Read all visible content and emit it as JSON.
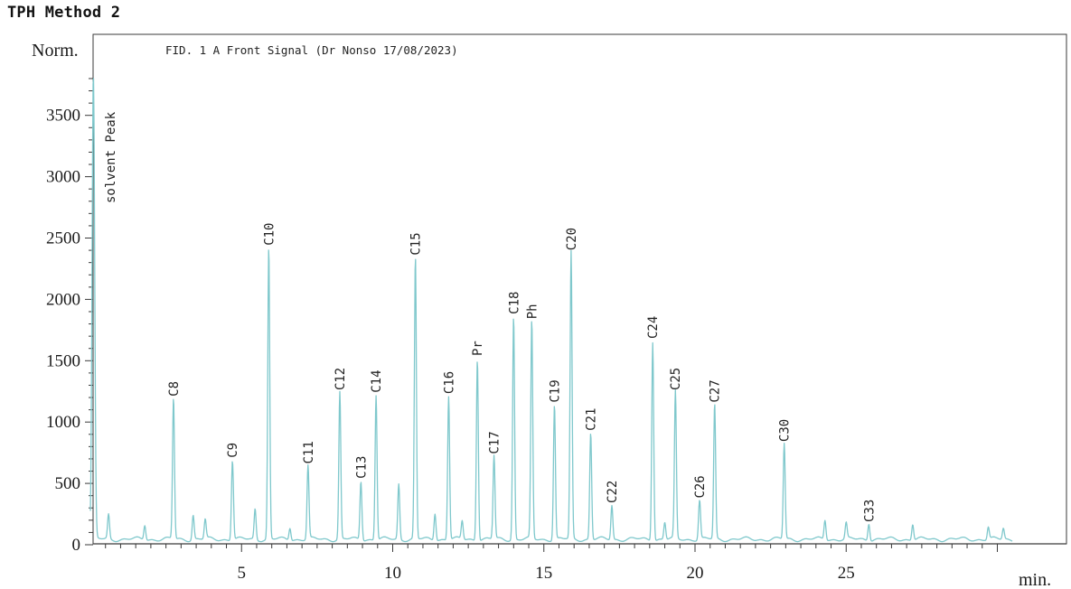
{
  "page_title": "TPH Method 2",
  "chart_data": {
    "type": "line",
    "signal_label": "FID. 1 A Front Signal (Dr Nonso 17/08/2023)",
    "ylabel": "Norm.",
    "xlabel": "min.",
    "xlim": [
      0,
      30.5
    ],
    "ylim": [
      0,
      3800
    ],
    "y_ticks": [
      0,
      500,
      1000,
      1500,
      2000,
      2500,
      3000,
      3500
    ],
    "x_ticks": [
      5,
      10,
      15,
      20,
      25
    ],
    "grid": false,
    "trace_color": "#7fc8cc",
    "peaks": [
      {
        "label": "solvent Peak",
        "x": 0.1,
        "y": 3800
      },
      {
        "label": "C8",
        "x": 2.75,
        "y": 1150
      },
      {
        "label": "C9",
        "x": 4.7,
        "y": 650
      },
      {
        "label": "C10",
        "x": 5.9,
        "y": 2380
      },
      {
        "label": "C11",
        "x": 7.2,
        "y": 600
      },
      {
        "label": "C12",
        "x": 8.25,
        "y": 1200
      },
      {
        "label": "C13",
        "x": 8.95,
        "y": 480
      },
      {
        "label": "C14",
        "x": 9.45,
        "y": 1180
      },
      {
        "label": "C15",
        "x": 10.75,
        "y": 2300
      },
      {
        "label": "C16",
        "x": 11.85,
        "y": 1170
      },
      {
        "label": "Pr",
        "x": 12.8,
        "y": 1480
      },
      {
        "label": "C17",
        "x": 13.35,
        "y": 680
      },
      {
        "label": "C18",
        "x": 14.0,
        "y": 1820
      },
      {
        "label": "Ph",
        "x": 14.6,
        "y": 1780
      },
      {
        "label": "C19",
        "x": 15.35,
        "y": 1100
      },
      {
        "label": "C20",
        "x": 15.9,
        "y": 2340
      },
      {
        "label": "C21",
        "x": 16.55,
        "y": 870
      },
      {
        "label": "C22",
        "x": 17.25,
        "y": 280
      },
      {
        "label": "C24",
        "x": 18.6,
        "y": 1620
      },
      {
        "label": "C25",
        "x": 19.35,
        "y": 1200
      },
      {
        "label": "C26",
        "x": 20.15,
        "y": 320
      },
      {
        "label": "C27",
        "x": 20.65,
        "y": 1100
      },
      {
        "label": "C30",
        "x": 22.95,
        "y": 780
      },
      {
        "label": "C33",
        "x": 25.75,
        "y": 140
      }
    ],
    "minor_peaks": [
      {
        "x": 0.6,
        "y": 200
      },
      {
        "x": 1.8,
        "y": 120
      },
      {
        "x": 3.4,
        "y": 200
      },
      {
        "x": 3.8,
        "y": 160
      },
      {
        "x": 5.45,
        "y": 250
      },
      {
        "x": 6.6,
        "y": 100
      },
      {
        "x": 10.2,
        "y": 450
      },
      {
        "x": 11.4,
        "y": 220
      },
      {
        "x": 12.3,
        "y": 150
      },
      {
        "x": 19.0,
        "y": 140
      },
      {
        "x": 24.3,
        "y": 160
      },
      {
        "x": 25.0,
        "y": 130
      },
      {
        "x": 27.2,
        "y": 130
      },
      {
        "x": 29.7,
        "y": 100
      },
      {
        "x": 30.2,
        "y": 90
      }
    ]
  }
}
